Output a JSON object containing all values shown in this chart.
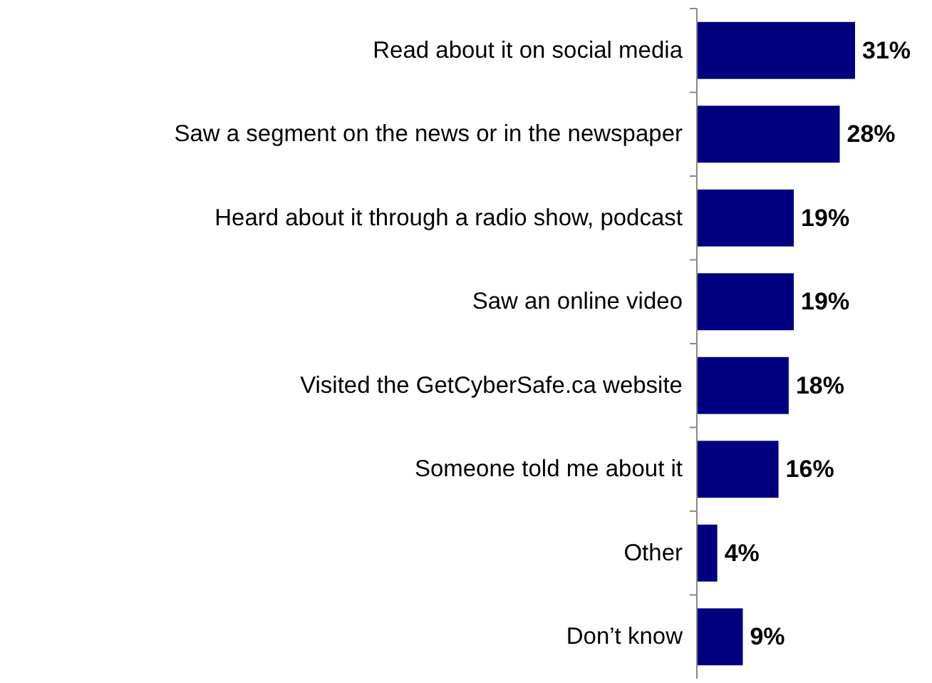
{
  "chart_data": {
    "type": "bar",
    "orientation": "horizontal",
    "categories": [
      "Read about it on social media",
      "Saw a segment on the news or in the newspaper",
      "Heard about it through a radio show, podcast",
      "Saw an online video",
      "Visited the GetCyberSafe.ca website",
      "Someone told me about it",
      "Other",
      "Don’t know"
    ],
    "values": [
      31,
      28,
      19,
      19,
      18,
      16,
      4,
      9
    ],
    "color": "#000080",
    "data_labels": true,
    "value_labels": [
      "31%",
      "28%",
      "19%",
      "19%",
      "18%",
      "16%",
      "4%",
      "9%"
    ]
  }
}
